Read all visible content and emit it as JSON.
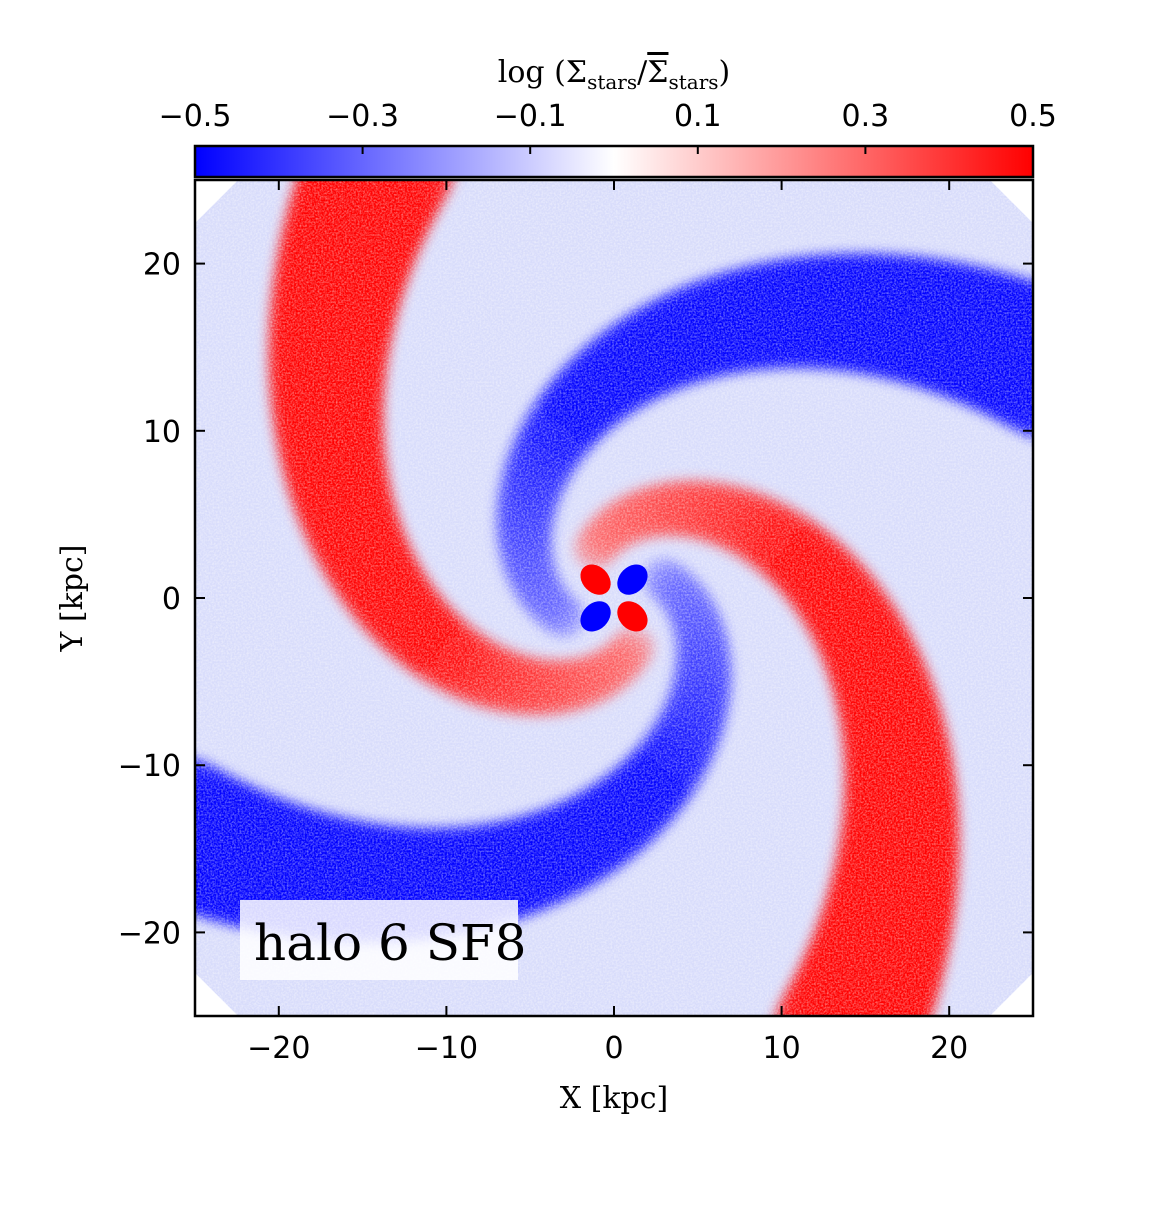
{
  "chart_data": {
    "type": "heatmap",
    "title": "",
    "xlabel": "X [kpc]",
    "ylabel": "Y [kpc]",
    "xlim": [
      -25,
      25
    ],
    "ylim": [
      -25,
      25
    ],
    "xticks": [
      -20,
      -10,
      0,
      10,
      20
    ],
    "yticks": [
      -20,
      -10,
      0,
      10,
      20
    ],
    "xtick_labels": [
      "−20",
      "−10",
      "0",
      "10",
      "20"
    ],
    "ytick_labels": [
      "−20",
      "−10",
      "0",
      "10",
      "20"
    ],
    "colorbar": {
      "label": "log (Σstars/Σstars)",
      "label_parts": {
        "prefix": "log",
        "symbol": "Σ",
        "subscript": "stars"
      },
      "range": [
        -0.5,
        0.5
      ],
      "ticks": [
        -0.5,
        -0.3,
        -0.1,
        0.1,
        0.3,
        0.5
      ],
      "tick_labels": [
        "−0.5",
        "−0.3",
        "−0.1",
        "0.1",
        "0.3",
        "0.5"
      ],
      "placement": "top",
      "colormap": "bwr",
      "colors": {
        "low": "#0000ff",
        "mid": "#ffffff",
        "high": "#ff0000"
      }
    },
    "annotation": "halo 6 SF8",
    "annotation_placement": "bottom-left",
    "grid": false,
    "description_of_field": {
      "pattern": "two-armed spiral with central quadrupole",
      "center_quadrupole": {
        "upper_left": 0.5,
        "upper_right": -0.5,
        "lower_left": -0.5,
        "lower_right": 0.5
      }
    }
  }
}
